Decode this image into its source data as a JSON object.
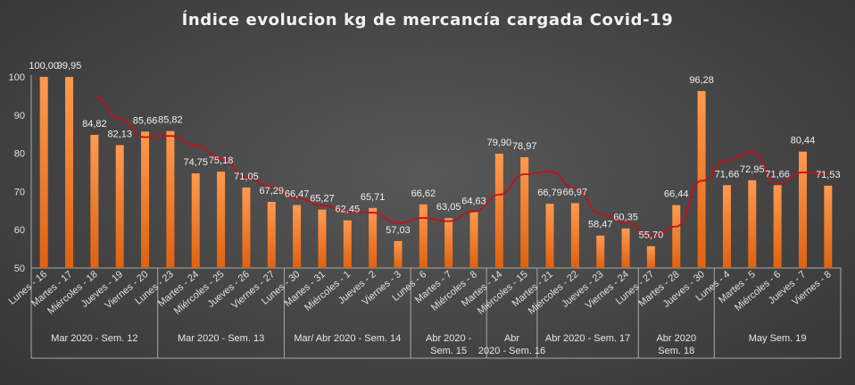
{
  "chart_data": {
    "type": "bar",
    "title": "Índice evolucion  kg de mercancía  cargada  Covid-19",
    "ylim": [
      50,
      100
    ],
    "yticks": [
      50,
      60,
      70,
      80,
      90,
      100
    ],
    "grid": false,
    "categories": [
      "Lunes - 16",
      "Martes - 17",
      "Miércoles - 18",
      "Jueves - 19",
      "Viernes - 20",
      "Lunes - 23",
      "Martes - 24",
      "Miércoles - 25",
      "Jueves - 26",
      "Viernes - 27",
      "Lunes - 30",
      "Martes - 31",
      "Miércoles - 1",
      "Jueves - 2",
      "Viernes - 3",
      "Lunes - 6",
      "Martes - 7",
      "Miércoles - 8",
      "Martes - 14",
      "Miércoles - 15",
      "Martes - 21",
      "Miércoles - 22",
      "Jueves - 23",
      "Viernes - 24",
      "Lunes - 27",
      "Martes - 28",
      "Jueves - 30",
      "Lunes - 4",
      "Martes - 5",
      "Miércoles - 6",
      "Jueves - 7",
      "Viernes - 8"
    ],
    "values": [
      100.0,
      99.95,
      84.82,
      82.13,
      85.66,
      85.82,
      74.75,
      75.18,
      71.05,
      67.29,
      66.47,
      65.27,
      62.45,
      65.71,
      57.03,
      66.62,
      63.05,
      64.63,
      79.9,
      78.97,
      66.79,
      66.97,
      58.47,
      60.35,
      55.7,
      66.44,
      96.28,
      71.66,
      72.95,
      71.66,
      80.44,
      71.53
    ],
    "data_labels": [
      "100,00",
      "99,95",
      "84,82",
      "82,13",
      "85,66",
      "85,82",
      "74,75",
      "75,18",
      "71,05",
      "67,29",
      "66,47",
      "65,27",
      "62,45",
      "65,71",
      "57,03",
      "66,62",
      "63,05",
      "64,63",
      "79,90",
      "78,97",
      "66,79",
      "66,97",
      "58,47",
      "60,35",
      "55,70",
      "66,44",
      "96,28",
      "71,66",
      "72,95",
      "71,66",
      "80,44",
      "71,53"
    ],
    "trendline": {
      "type": "moving_average",
      "period": 3,
      "color": "#c0121a"
    },
    "groups": [
      {
        "label": "Mar 2020 - Sem. 12",
        "count": 5
      },
      {
        "label": "Mar 2020 - Sem. 13",
        "count": 5
      },
      {
        "label": "Mar/ Abr 2020 - Sem. 14",
        "count": 5
      },
      {
        "label": "Abr 2020 - Sem. 15",
        "count": 3
      },
      {
        "label": "Abr 2020 - Sem. 16",
        "count": 2
      },
      {
        "label": "Abr 2020 - Sem. 17",
        "count": 4
      },
      {
        "label": "Abr 2020 Sem. 18",
        "count": 3
      },
      {
        "label": "May Sem. 19",
        "count": 5
      }
    ],
    "colors": {
      "bar_top": "#ff9a50",
      "bar_bottom": "#e0620f",
      "trend": "#c0121a",
      "axis": "#a8a8a8"
    }
  }
}
